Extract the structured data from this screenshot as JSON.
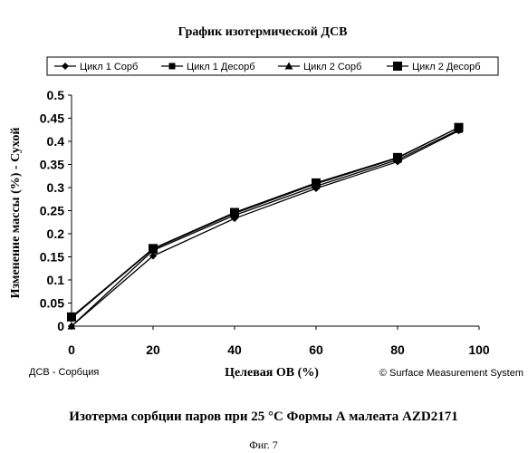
{
  "chart_data": {
    "type": "line",
    "title": "График изотермической ДСВ",
    "xlabel": "Целевая ОВ (%)",
    "ylabel": "Изменение массы (%) - Сухой",
    "x": [
      0,
      20,
      40,
      60,
      80,
      95
    ],
    "xlim": [
      0,
      100
    ],
    "ylim": [
      0,
      0.5
    ],
    "xticks": [
      "0",
      "20",
      "40",
      "60",
      "80",
      "100"
    ],
    "yticks": [
      "0",
      "0.05",
      "0.1",
      "0.15",
      "0.2",
      "0.25",
      "0.3",
      "0.35",
      "0.4",
      "0.45",
      "0.5"
    ],
    "grid": false,
    "legend_position": "top",
    "series": [
      {
        "name": "Цикл 1 Сорб",
        "marker": "diamond",
        "values": [
          0.0,
          0.152,
          0.233,
          0.298,
          0.356,
          0.423
        ]
      },
      {
        "name": "Цикл 1 Десорб",
        "marker": "square",
        "values": [
          0.018,
          0.167,
          0.244,
          0.308,
          0.364,
          0.43
        ]
      },
      {
        "name": "Цикл 2 Сорб",
        "marker": "triangle",
        "values": [
          0.0,
          0.164,
          0.24,
          0.303,
          0.36,
          0.425
        ]
      },
      {
        "name": "Цикл 2 Десорб",
        "marker": "bigsquare",
        "values": [
          0.02,
          0.168,
          0.246,
          0.31,
          0.365,
          0.43
        ]
      }
    ],
    "footer_left": "ДСВ - Сорбция",
    "footer_right": "© Surface Measurement System"
  },
  "caption": "Изотерма сорбции паров при 25 °С Формы А малеата AZD2171",
  "figure_label": "Фиг. 7"
}
